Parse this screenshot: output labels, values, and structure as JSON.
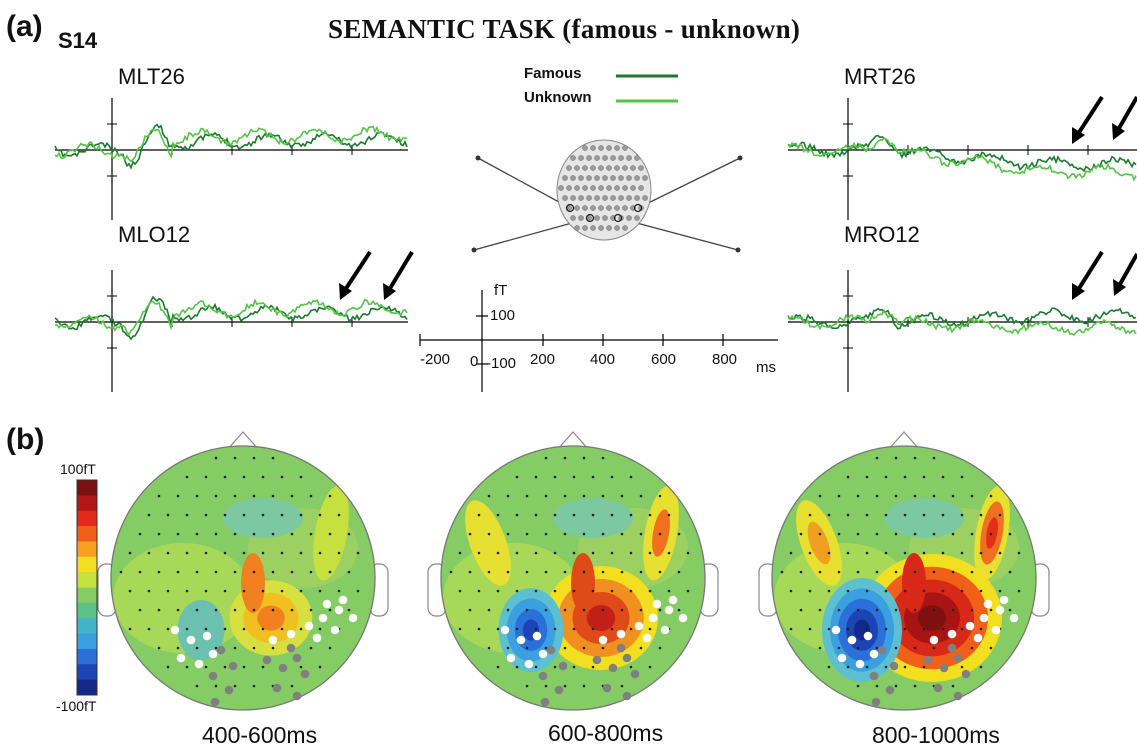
{
  "panel_a": {
    "label": "(a)",
    "subject": "S14",
    "title": "SEMANTIC TASK (famous - unknown)",
    "legend": [
      {
        "label": "Famous",
        "color": "#1a7a2e"
      },
      {
        "label": "Unknown",
        "color": "#54c447"
      }
    ],
    "channels": [
      {
        "name": "MLT26"
      },
      {
        "name": "MLO12"
      },
      {
        "name": "MRT26"
      },
      {
        "name": "MRO12"
      }
    ],
    "scale": {
      "y_unit": "fT",
      "y_ticks": [
        "100",
        "-100"
      ],
      "x_ticks": [
        "-200",
        "0",
        "200",
        "400",
        "600",
        "800"
      ],
      "x_unit": "ms"
    }
  },
  "panel_b": {
    "label": "(b)",
    "colorbar": {
      "max_label": "100fT",
      "min_label": "-100fT"
    },
    "topomaps": [
      {
        "window": "400-600ms",
        "intensity": 0.45
      },
      {
        "window": "600-800ms",
        "intensity": 0.75
      },
      {
        "window": "800-1000ms",
        "intensity": 1.0
      }
    ]
  }
}
